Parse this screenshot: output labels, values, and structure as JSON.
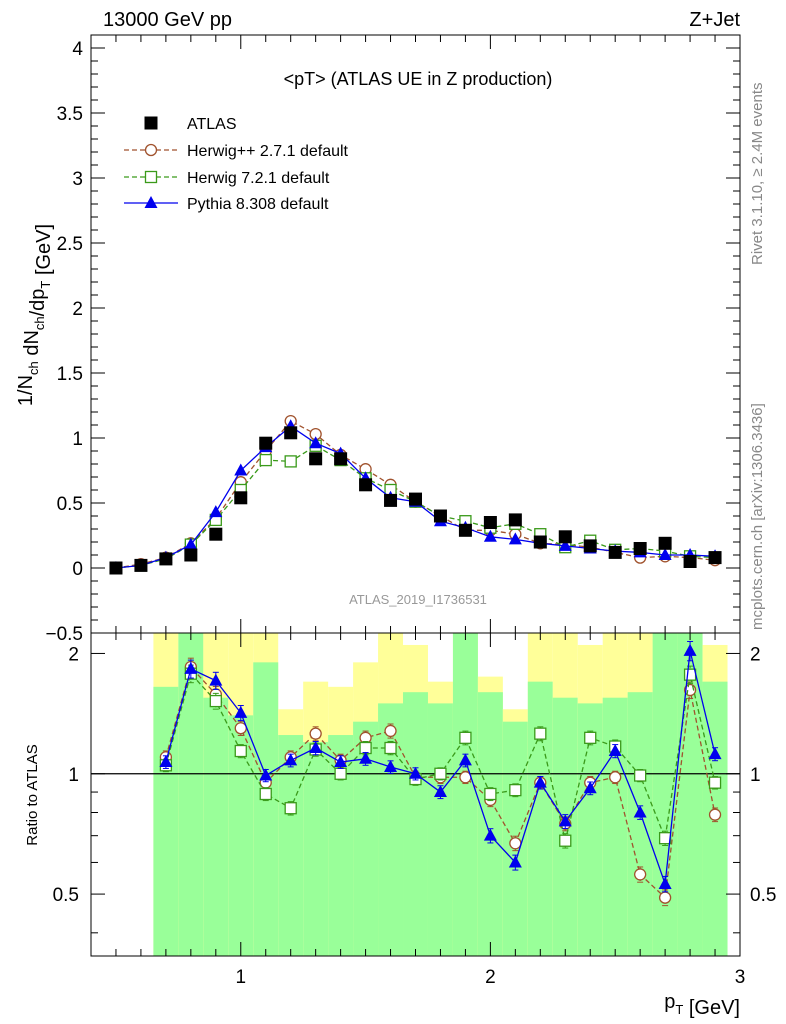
{
  "header": {
    "energy_label": "13000 GeV pp",
    "process_label": "Z+Jet",
    "side_label_top": "Rivet 3.1.10, ≥ 2.4M events",
    "side_label_bottom": "mcplots.cern.ch [arXiv:1306.3436]",
    "analysis_label": "ATLAS_2019_I1736531"
  },
  "colors": {
    "atlas": "#000000",
    "herwigpp": "#a0522d",
    "herwig7": "#3a9a1a",
    "pythia": "#0000ee",
    "band_inner": "#99ff99",
    "band_outer": "#ffff99"
  },
  "chart_data": [
    {
      "type": "scatter",
      "title": "<pT> (ATLAS UE in Z production)",
      "ylabel": "1/N_ch dN_ch/dp_T [GeV]",
      "xlim": [
        0.4,
        3.0
      ],
      "ylim": [
        -0.5,
        4.1
      ],
      "yticks": [
        "−0.5",
        "0",
        "0.5",
        "1",
        "1.5",
        "2",
        "2.5",
        "3",
        "3.5",
        "4"
      ],
      "legend_position": "top-left",
      "x": [
        0.5,
        0.6,
        0.7,
        0.8,
        0.9,
        1.0,
        1.1,
        1.2,
        1.3,
        1.4,
        1.5,
        1.6,
        1.7,
        1.8,
        1.9,
        2.0,
        2.1,
        2.2,
        2.3,
        2.4,
        2.5,
        2.6,
        2.7,
        2.8,
        2.9
      ],
      "series": [
        {
          "name": "ATLAS",
          "marker": "filled-square",
          "values": [
            0.0,
            0.02,
            0.07,
            0.1,
            0.26,
            0.54,
            0.96,
            1.04,
            0.84,
            0.84,
            0.64,
            0.52,
            0.53,
            0.4,
            0.29,
            0.35,
            0.37,
            0.2,
            0.24,
            0.17,
            0.12,
            0.15,
            0.19,
            0.05,
            0.08
          ]
        },
        {
          "name": "Herwig++ 2.7.1 default",
          "marker": "open-circle",
          "line": "dashed",
          "values": [
            0.0,
            0.03,
            0.08,
            0.19,
            0.38,
            0.66,
            0.9,
            1.13,
            1.03,
            0.87,
            0.76,
            0.64,
            0.51,
            0.4,
            0.29,
            0.29,
            0.26,
            0.19,
            0.18,
            0.16,
            0.12,
            0.08,
            0.09,
            0.08,
            0.06
          ]
        },
        {
          "name": "Herwig 7.2.1 default",
          "marker": "open-square",
          "line": "dashed",
          "values": [
            0.0,
            0.02,
            0.07,
            0.18,
            0.37,
            0.6,
            0.83,
            0.82,
            0.94,
            0.83,
            0.69,
            0.6,
            0.51,
            0.4,
            0.36,
            0.31,
            0.34,
            0.26,
            0.16,
            0.21,
            0.14,
            0.15,
            0.13,
            0.09,
            0.08
          ]
        },
        {
          "name": "Pythia 8.308 default",
          "marker": "filled-triangle",
          "line": "solid",
          "values": [
            0.0,
            0.02,
            0.08,
            0.18,
            0.43,
            0.75,
            0.93,
            1.09,
            0.96,
            0.88,
            0.69,
            0.54,
            0.51,
            0.36,
            0.31,
            0.24,
            0.22,
            0.19,
            0.17,
            0.15,
            0.13,
            0.12,
            0.1,
            0.1,
            0.09
          ]
        }
      ]
    },
    {
      "type": "scatter",
      "xlabel": "p_T [GeV]",
      "ylabel": "Ratio to ATLAS",
      "xlim": [
        0.4,
        3.0
      ],
      "ylim": [
        0.35,
        2.25
      ],
      "xticks": [
        "1",
        "2",
        "3"
      ],
      "yticks": [
        "0.5",
        "1",
        "2"
      ],
      "reference_line": 1.0,
      "x": [
        0.7,
        0.8,
        0.9,
        1.0,
        1.1,
        1.2,
        1.3,
        1.4,
        1.5,
        1.6,
        1.7,
        1.8,
        1.9,
        2.0,
        2.1,
        2.2,
        2.3,
        2.4,
        2.5,
        2.6,
        2.7,
        2.8,
        2.9
      ],
      "bands": {
        "edges": [
          0.65,
          0.75,
          0.85,
          0.95,
          1.05,
          1.15,
          1.25,
          1.35,
          1.45,
          1.55,
          1.65,
          1.75,
          1.85,
          1.95,
          2.05,
          2.15,
          2.25,
          2.35,
          2.45,
          2.55,
          2.65,
          2.75,
          2.85,
          2.95
        ],
        "inner_lo": [
          0.35,
          0.35,
          0.35,
          0.35,
          0.35,
          0.35,
          0.35,
          0.35,
          0.35,
          0.35,
          0.35,
          0.35,
          0.35,
          0.35,
          0.35,
          0.35,
          0.35,
          0.35,
          0.35,
          0.35,
          0.35,
          0.35,
          0.35
        ],
        "inner_hi": [
          1.65,
          2.25,
          1.55,
          1.4,
          1.9,
          1.25,
          1.2,
          1.25,
          1.35,
          1.5,
          1.6,
          1.5,
          2.25,
          1.6,
          1.35,
          1.7,
          1.55,
          1.5,
          1.55,
          1.6,
          2.25,
          2.25,
          1.7
        ],
        "outer_lo": [
          0.35,
          0.35,
          0.35,
          0.35,
          0.35,
          0.35,
          0.35,
          0.35,
          0.35,
          0.35,
          0.35,
          0.35,
          0.35,
          0.35,
          0.35,
          0.35,
          0.35,
          0.35,
          0.35,
          0.35,
          0.35,
          0.35,
          0.35
        ],
        "outer_hi": [
          2.25,
          2.25,
          2.25,
          2.25,
          2.25,
          1.45,
          1.7,
          1.65,
          1.9,
          2.25,
          2.1,
          1.7,
          2.25,
          1.75,
          1.45,
          2.25,
          2.25,
          2.1,
          2.25,
          2.25,
          2.25,
          2.25,
          2.1
        ]
      },
      "series": [
        {
          "name": "Herwig++ 2.7.1 default",
          "values": [
            1.1,
            1.85,
            1.58,
            1.3,
            0.95,
            1.1,
            1.26,
            1.08,
            1.23,
            1.28,
            0.98,
            0.98,
            0.98,
            0.86,
            0.67,
            0.95,
            0.75,
            0.95,
            0.98,
            0.56,
            0.49,
            1.62,
            0.79
          ]
        },
        {
          "name": "Herwig 7.2.1 default",
          "values": [
            1.05,
            1.78,
            1.52,
            1.14,
            0.89,
            0.82,
            1.15,
            1.0,
            1.16,
            1.16,
            0.97,
            1.0,
            1.23,
            0.89,
            0.91,
            1.26,
            0.68,
            1.23,
            1.17,
            0.99,
            0.69,
            1.77,
            0.95
          ]
        },
        {
          "name": "Pythia 8.308 default",
          "values": [
            1.07,
            1.83,
            1.71,
            1.42,
            0.99,
            1.08,
            1.16,
            1.07,
            1.09,
            1.04,
            1.0,
            0.9,
            1.08,
            0.7,
            0.6,
            0.95,
            0.76,
            0.92,
            1.14,
            0.8,
            0.53,
            2.03,
            1.12
          ]
        }
      ]
    }
  ]
}
